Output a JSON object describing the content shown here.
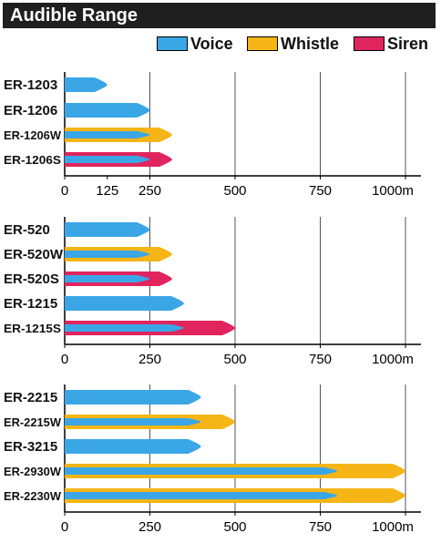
{
  "title": "Audible Range",
  "colors": {
    "voice": "#3aa6e6",
    "whistle": "#f5b517",
    "siren": "#e0245e"
  },
  "legend": [
    {
      "key": "voice",
      "label": "Voice"
    },
    {
      "key": "whistle",
      "label": "Whistle"
    },
    {
      "key": "siren",
      "label": "Siren"
    }
  ],
  "chart_data": [
    {
      "type": "bar",
      "categories": [
        "ER-1203",
        "ER-1206",
        "ER-1206W",
        "ER-1206S"
      ],
      "series": [
        {
          "name": "Voice",
          "values": [
            125,
            250,
            250,
            250
          ]
        },
        {
          "name": "Whistle",
          "values": [
            null,
            null,
            315,
            null
          ]
        },
        {
          "name": "Siren",
          "values": [
            null,
            null,
            null,
            315
          ]
        }
      ],
      "xlim": [
        0,
        1000
      ],
      "xticks": [
        "0",
        "125",
        "250",
        "500",
        "750",
        "1000m"
      ],
      "xtick_values": [
        0,
        125,
        250,
        500,
        750,
        1000
      ],
      "gridlines": [
        250,
        500,
        750,
        1000
      ]
    },
    {
      "type": "bar",
      "categories": [
        "ER-520",
        "ER-520W",
        "ER-520S",
        "ER-1215",
        "ER-1215S"
      ],
      "series": [
        {
          "name": "Voice",
          "values": [
            250,
            250,
            250,
            350,
            350
          ]
        },
        {
          "name": "Whistle",
          "values": [
            null,
            315,
            null,
            null,
            null
          ]
        },
        {
          "name": "Siren",
          "values": [
            null,
            null,
            315,
            null,
            500
          ]
        }
      ],
      "xlim": [
        0,
        1000
      ],
      "xticks": [
        "0",
        "250",
        "500",
        "750",
        "1000m"
      ],
      "xtick_values": [
        0,
        250,
        500,
        750,
        1000
      ],
      "gridlines": [
        250,
        500,
        750,
        1000
      ]
    },
    {
      "type": "bar",
      "categories": [
        "ER-2215",
        "ER-2215W",
        "ER-3215",
        "ER-2930W",
        "ER-2230W"
      ],
      "series": [
        {
          "name": "Voice",
          "values": [
            400,
            400,
            400,
            800,
            800
          ]
        },
        {
          "name": "Whistle",
          "values": [
            null,
            500,
            null,
            1000,
            1000
          ]
        },
        {
          "name": "Siren",
          "values": [
            null,
            null,
            null,
            null,
            null
          ]
        }
      ],
      "xlim": [
        0,
        1000
      ],
      "xticks": [
        "0",
        "250",
        "500",
        "750",
        "1000m"
      ],
      "xtick_values": [
        0,
        250,
        500,
        750,
        1000
      ],
      "gridlines": [
        250,
        500,
        750,
        1000
      ]
    }
  ]
}
